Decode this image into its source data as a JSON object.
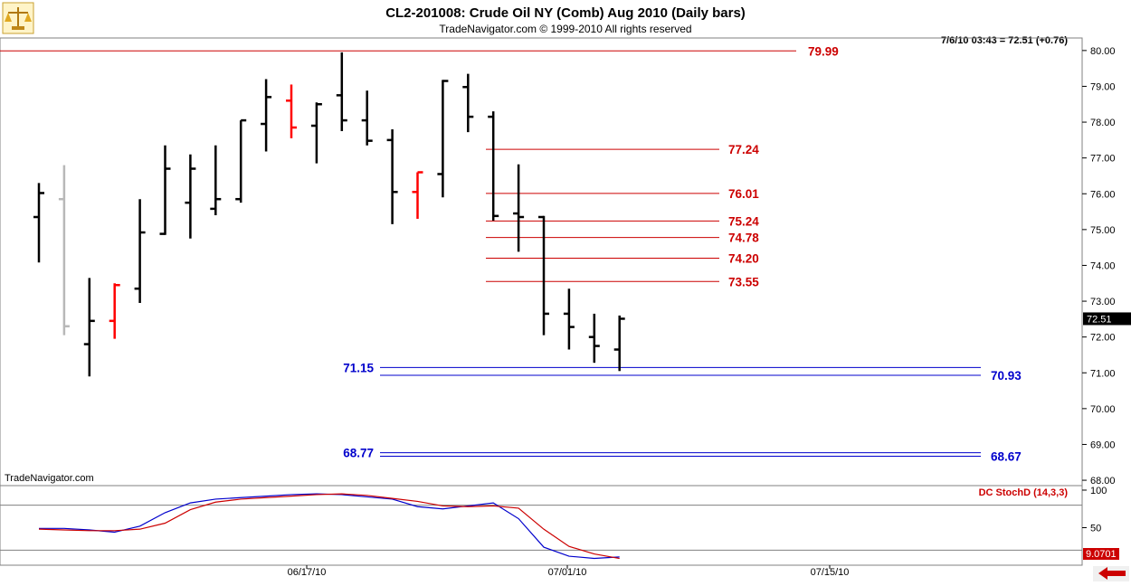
{
  "header": {
    "title": "CL2-201008:  Crude Oil NY (Comb) Aug 2010  (Daily bars)",
    "subtitle": "TradeNavigator.com © 1999-2010 All rights reserved",
    "last_quote": "7/6/10 03:43 = 72.51 (+0.76)",
    "price_tag": "72.51",
    "watermark": "TradeNavigator.com"
  },
  "colors": {
    "up_bar": "#000000",
    "down_bar": "#ff0000",
    "muted_bar": "#b8b8b8",
    "resistance": "#cc0000",
    "support": "#0000cc",
    "stoch_k": "#0000cc",
    "stoch_d": "#cc0000"
  },
  "chart_data": [
    {
      "type": "ohlc",
      "title": "CL2-201008:  Crude Oil NY (Comb) Aug 2010  (Daily bars)",
      "y_ticks": [
        "80.00",
        "79.00",
        "78.00",
        "77.00",
        "76.00",
        "75.00",
        "74.00",
        "73.00",
        "72.00",
        "71.00",
        "70.00",
        "69.00",
        "68.00"
      ],
      "ylim": [
        67.85,
        80.35
      ],
      "x_ticks": [
        "06/17/10",
        "07/01/10",
        "07/15/10"
      ],
      "bars": [
        {
          "o": 75.35,
          "h": 76.3,
          "l": 74.08,
          "c": 76.02,
          "color": "up"
        },
        {
          "o": 75.85,
          "h": 76.8,
          "l": 72.05,
          "c": 72.3,
          "color": "muted"
        },
        {
          "o": 71.8,
          "h": 73.65,
          "l": 70.9,
          "c": 72.45,
          "color": "up"
        },
        {
          "o": 72.45,
          "h": 73.5,
          "l": 71.95,
          "c": 73.45,
          "color": "down"
        },
        {
          "o": 73.35,
          "h": 75.85,
          "l": 72.95,
          "c": 74.92,
          "color": "up"
        },
        {
          "o": 74.88,
          "h": 77.35,
          "l": 74.85,
          "c": 76.7,
          "color": "up"
        },
        {
          "o": 75.75,
          "h": 77.1,
          "l": 74.75,
          "c": 76.7,
          "color": "up"
        },
        {
          "o": 75.58,
          "h": 77.35,
          "l": 75.4,
          "c": 75.85,
          "color": "up"
        },
        {
          "o": 75.85,
          "h": 78.05,
          "l": 75.75,
          "c": 78.05,
          "color": "up"
        },
        {
          "o": 77.95,
          "h": 79.2,
          "l": 77.18,
          "c": 78.7,
          "color": "up"
        },
        {
          "o": 78.6,
          "h": 79.05,
          "l": 77.55,
          "c": 77.85,
          "color": "down"
        },
        {
          "o": 77.9,
          "h": 78.55,
          "l": 76.85,
          "c": 78.5,
          "color": "up"
        },
        {
          "o": 78.75,
          "h": 79.95,
          "l": 77.75,
          "c": 78.05,
          "color": "up"
        },
        {
          "o": 78.05,
          "h": 78.88,
          "l": 77.35,
          "c": 77.48,
          "color": "up"
        },
        {
          "o": 77.5,
          "h": 77.8,
          "l": 75.15,
          "c": 76.05,
          "color": "up"
        },
        {
          "o": 76.05,
          "h": 76.6,
          "l": 75.3,
          "c": 76.6,
          "color": "down"
        },
        {
          "o": 76.55,
          "h": 79.18,
          "l": 75.9,
          "c": 79.15,
          "color": "up"
        },
        {
          "o": 78.98,
          "h": 79.35,
          "l": 77.72,
          "c": 78.15,
          "color": "up"
        },
        {
          "o": 78.15,
          "h": 78.3,
          "l": 75.25,
          "c": 75.38,
          "color": "up"
        },
        {
          "o": 75.45,
          "h": 76.82,
          "l": 74.38,
          "c": 75.35,
          "color": "up"
        },
        {
          "o": 75.35,
          "h": 75.38,
          "l": 72.05,
          "c": 72.65,
          "color": "up"
        },
        {
          "o": 72.65,
          "h": 73.35,
          "l": 71.65,
          "c": 72.28,
          "color": "up"
        },
        {
          "o": 72.0,
          "h": 72.65,
          "l": 71.28,
          "c": 71.75,
          "color": "up"
        },
        {
          "o": 71.65,
          "h": 72.6,
          "l": 71.05,
          "c": 72.51,
          "color": "up"
        }
      ],
      "levels": [
        {
          "value": 79.99,
          "label": "79.99",
          "kind": "resistance"
        },
        {
          "value": 77.24,
          "label": "77.24",
          "kind": "resistance"
        },
        {
          "value": 76.01,
          "label": "76.01",
          "kind": "resistance"
        },
        {
          "value": 75.24,
          "label": "75.24",
          "kind": "resistance"
        },
        {
          "value": 74.78,
          "label": "74.78",
          "kind": "resistance"
        },
        {
          "value": 74.2,
          "label": "74.20",
          "kind": "resistance"
        },
        {
          "value": 73.55,
          "label": "73.55",
          "kind": "resistance"
        },
        {
          "value": 71.15,
          "label": "71.15",
          "kind": "support"
        },
        {
          "value": 70.93,
          "label": "70.93",
          "kind": "support"
        },
        {
          "value": 68.77,
          "label": "68.77",
          "kind": "support"
        },
        {
          "value": 68.67,
          "label": "68.67",
          "kind": "support"
        }
      ]
    },
    {
      "type": "line",
      "title": "DC StochD (14,3,3)",
      "y_ticks": [
        "100",
        "50"
      ],
      "ylim": [
        0,
        106
      ],
      "guides": [
        80,
        20
      ],
      "last_value_label": "9.0701",
      "series": [
        {
          "values": [
            49,
            49,
            47,
            44,
            52,
            70,
            83,
            88,
            90,
            92,
            94,
            95,
            94,
            91,
            88,
            78,
            75,
            79,
            83,
            62,
            24,
            12,
            9,
            11
          ]
        },
        {
          "values": [
            48,
            47,
            46,
            46,
            48,
            56,
            74,
            84,
            88,
            90,
            92,
            94,
            95,
            93,
            89,
            85,
            79,
            78,
            79,
            76,
            48,
            25,
            15,
            9
          ]
        }
      ]
    }
  ]
}
